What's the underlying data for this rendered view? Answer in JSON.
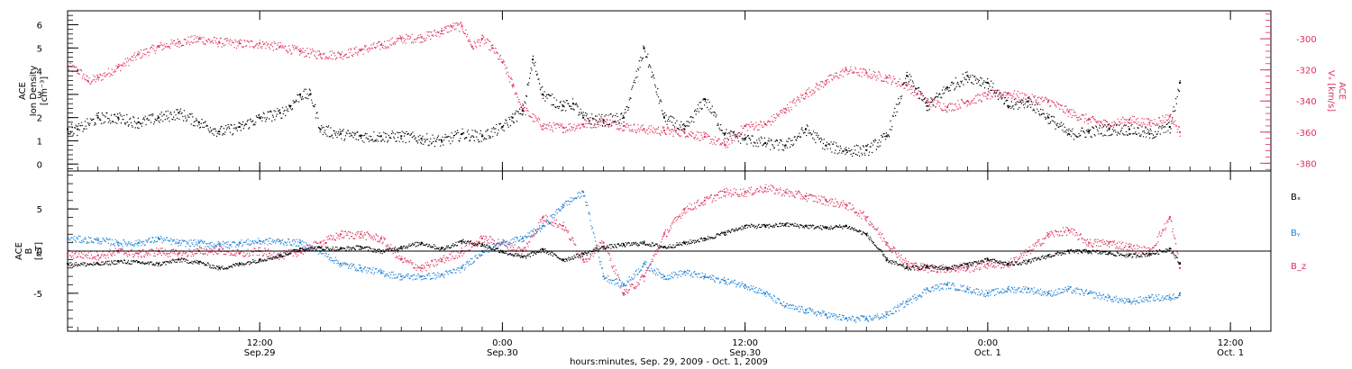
{
  "colors": {
    "black": "#000000",
    "pink": "#e0305a",
    "blue": "#1f82d6"
  },
  "top_panel": {
    "left_label": [
      "ACE",
      "Ion Density",
      "[cm⁻³]"
    ],
    "right_label_title": "ACE",
    "right_label_var": "Vₓ [km/s]"
  },
  "bottom_panel": {
    "left_label": [
      "ACE",
      "B",
      "[nT]"
    ]
  },
  "x_axis": {
    "ticks": [
      {
        "time": "12:00",
        "date": "Sep.29",
        "hour": 12
      },
      {
        "time": "0:00",
        "date": "Sep.30",
        "hour": 24
      },
      {
        "time": "12:00",
        "date": "Sep.30",
        "hour": 36
      },
      {
        "time": "0:00",
        "date": "Oct. 1",
        "hour": 48
      },
      {
        "time": "12:00",
        "date": "Oct. 1",
        "hour": 60
      }
    ],
    "title": "hours:minutes, Sep. 29, 2009 - Oct.  1, 2009"
  },
  "chart_data": [
    {
      "type": "scatter",
      "panel": "top",
      "x_unit": "hours since 2009-09-29 00:00",
      "xlim": [
        2.5,
        62
      ],
      "y_left": {
        "label": "ACE Ion Density [cm⁻³]",
        "ylim": [
          -0.3,
          6.6
        ],
        "ticks": [
          0,
          1,
          2,
          3,
          4,
          5,
          6
        ]
      },
      "y_right": {
        "label": "ACE Vₓ [km/s]",
        "ylim": [
          -385,
          -282
        ],
        "ticks": [
          -380,
          -360,
          -340,
          -320,
          -300
        ]
      },
      "series": [
        {
          "name": "Ion Density",
          "axis": "left",
          "color": "#000000",
          "x": [
            2.5,
            3,
            4,
            5,
            6,
            7,
            8,
            9,
            10,
            11,
            12,
            13,
            13.5,
            14,
            14.5,
            15,
            16,
            17,
            18,
            19,
            20,
            21,
            22,
            23,
            24,
            24.5,
            25,
            25.5,
            26,
            27,
            27.5,
            28,
            29,
            30,
            31,
            32,
            33,
            34,
            35,
            36,
            37,
            38,
            39,
            40,
            41,
            42,
            43,
            44,
            45,
            46,
            47,
            48,
            49,
            50,
            51,
            52,
            53,
            54,
            55,
            56,
            57,
            57.5
          ],
          "y": [
            1.5,
            1.5,
            2,
            2,
            1.8,
            2,
            2.2,
            1.8,
            1.4,
            1.6,
            2,
            2.2,
            2.5,
            3,
            3,
            1.5,
            1.3,
            1.2,
            1.2,
            1.2,
            1.1,
            1,
            1.3,
            1.2,
            1.6,
            2,
            2.3,
            4.5,
            3,
            2.5,
            2.6,
            2,
            1.9,
            2,
            5,
            2,
            1.5,
            2.8,
            1.3,
            1.1,
            0.9,
            0.8,
            1.5,
            0.8,
            0.6,
            0.6,
            1.2,
            3.8,
            2.5,
            3.3,
            3.8,
            3.5,
            2.5,
            2.7,
            2,
            1.3,
            1.4,
            1.5,
            1.5,
            1.3,
            1.6,
            3.5
          ]
        },
        {
          "name": "Vx",
          "axis": "right",
          "color": "#e0305a",
          "x": [
            2.5,
            3,
            3.5,
            4,
            5,
            6,
            7,
            8,
            9,
            10,
            11,
            12,
            13,
            14,
            15,
            16,
            17,
            18,
            19,
            20,
            21,
            21.5,
            22,
            22.5,
            23,
            23.5,
            24,
            24.5,
            25,
            26,
            27,
            28,
            29,
            30,
            31,
            32,
            33,
            34,
            35,
            36,
            37,
            38,
            39,
            40,
            41,
            42,
            43,
            44,
            45,
            46,
            47,
            48,
            49,
            50,
            51,
            52,
            53,
            54,
            55,
            56,
            57,
            57.5
          ],
          "y": [
            -318,
            -320,
            -327,
            -325,
            -318,
            -310,
            -305,
            -302,
            -300,
            -302,
            -303,
            -303,
            -305,
            -308,
            -310,
            -310,
            -307,
            -304,
            -300,
            -299,
            -295,
            -292,
            -292,
            -305,
            -300,
            -306,
            -315,
            -330,
            -345,
            -356,
            -357,
            -355,
            -353,
            -356,
            -358,
            -359,
            -360,
            -363,
            -368,
            -356,
            -355,
            -345,
            -335,
            -327,
            -320,
            -322,
            -325,
            -330,
            -340,
            -344,
            -340,
            -336,
            -335,
            -338,
            -340,
            -347,
            -352,
            -355,
            -352,
            -354,
            -350,
            -360
          ]
        }
      ]
    },
    {
      "type": "scatter",
      "panel": "bottom",
      "x_unit": "hours since 2009-09-29 00:00",
      "xlim": [
        2.5,
        62
      ],
      "ylabel": "ACE B [nT]",
      "ylim": [
        -9.5,
        9.5
      ],
      "yticks": [
        -5,
        0,
        5
      ],
      "zero_line": true,
      "legend": [
        "Bₓ",
        "Bᵧ",
        "B_z"
      ],
      "series": [
        {
          "name": "Bₓ",
          "color": "#000000",
          "x": [
            2.5,
            4,
            5,
            6,
            7,
            8,
            9,
            10,
            11,
            12,
            13,
            14,
            15,
            16,
            17,
            18,
            19,
            20,
            21,
            22,
            23,
            24,
            25,
            26,
            27,
            28,
            29,
            30,
            31,
            32,
            33,
            34,
            35,
            36,
            37,
            38,
            39,
            40,
            41,
            42,
            43,
            44,
            45,
            46,
            47,
            48,
            49,
            50,
            51,
            52,
            53,
            54,
            55,
            56,
            57,
            57.5
          ],
          "y": [
            -1.5,
            -1.5,
            -1.2,
            -1.3,
            -1.5,
            -1,
            -1.3,
            -2,
            -1.5,
            -1,
            -0.5,
            0.3,
            0.4,
            0.3,
            0.5,
            0,
            0.5,
            1,
            0.3,
            1.2,
            0.8,
            0,
            -0.7,
            0.2,
            -1,
            -0.3,
            0.5,
            0.8,
            1,
            0.5,
            1,
            1.5,
            2.2,
            3,
            3,
            3.2,
            3,
            2.8,
            3,
            2,
            -1,
            -2,
            -1.8,
            -2,
            -1.5,
            -1,
            -1.5,
            -1.2,
            -0.5,
            0,
            0,
            -0.2,
            -0.5,
            -0.3,
            0.3,
            -1.5
          ]
        },
        {
          "name": "Bᵧ",
          "color": "#1f82d6",
          "x": [
            2.5,
            4,
            5,
            6,
            7,
            8,
            9,
            10,
            11,
            12,
            13,
            14,
            15,
            16,
            17,
            18,
            19,
            20,
            21,
            22,
            23,
            24,
            25,
            26,
            27,
            28,
            29,
            30,
            31,
            32,
            33,
            34,
            35,
            36,
            37,
            38,
            39,
            40,
            41,
            42,
            43,
            44,
            45,
            46,
            47,
            48,
            49,
            50,
            51,
            52,
            53,
            54,
            55,
            56,
            57,
            57.5
          ],
          "y": [
            1.5,
            1.3,
            1,
            1,
            1.5,
            1,
            1,
            0.8,
            1,
            1.2,
            1.2,
            1,
            0,
            -1.5,
            -2,
            -2.5,
            -3,
            -3,
            -2.8,
            -2,
            0,
            1,
            1.5,
            3,
            5.5,
            7,
            -3,
            -4,
            -1.5,
            -3,
            -2.5,
            -3,
            -3.5,
            -4,
            -5,
            -6.5,
            -7,
            -7.5,
            -8,
            -8,
            -7.5,
            -6,
            -4.5,
            -4,
            -4.5,
            -5,
            -4.5,
            -4.5,
            -5,
            -4.5,
            -5,
            -5.5,
            -6,
            -5.5,
            -5.5,
            -5
          ]
        },
        {
          "name": "B_z",
          "color": "#e0305a",
          "x": [
            2.5,
            4,
            5,
            6,
            7,
            8,
            9,
            10,
            11,
            12,
            13,
            14,
            15,
            16,
            17,
            18,
            19,
            20,
            21,
            22,
            23,
            24,
            25,
            26,
            27,
            28,
            29,
            30,
            31,
            32,
            33,
            34,
            35,
            36,
            37,
            38,
            39,
            40,
            41,
            42,
            43,
            44,
            45,
            46,
            47,
            48,
            49,
            50,
            51,
            52,
            53,
            54,
            55,
            56,
            57,
            57.5
          ],
          "y": [
            -0.3,
            -0.5,
            0,
            -0.3,
            0,
            -0.3,
            0,
            0.2,
            -0.3,
            0,
            -0.5,
            0,
            1,
            2,
            2,
            1.5,
            -1,
            -2,
            -1,
            0,
            1.5,
            1,
            0,
            4,
            3,
            -1,
            1,
            -5,
            -3,
            2,
            5,
            6,
            7,
            7,
            7.5,
            7,
            6.5,
            6,
            5.5,
            4,
            1,
            -1.5,
            -2,
            -2,
            -2,
            -1.5,
            -1.5,
            0,
            2,
            2.5,
            1,
            1,
            0.5,
            0,
            4,
            -2
          ]
        }
      ]
    }
  ]
}
